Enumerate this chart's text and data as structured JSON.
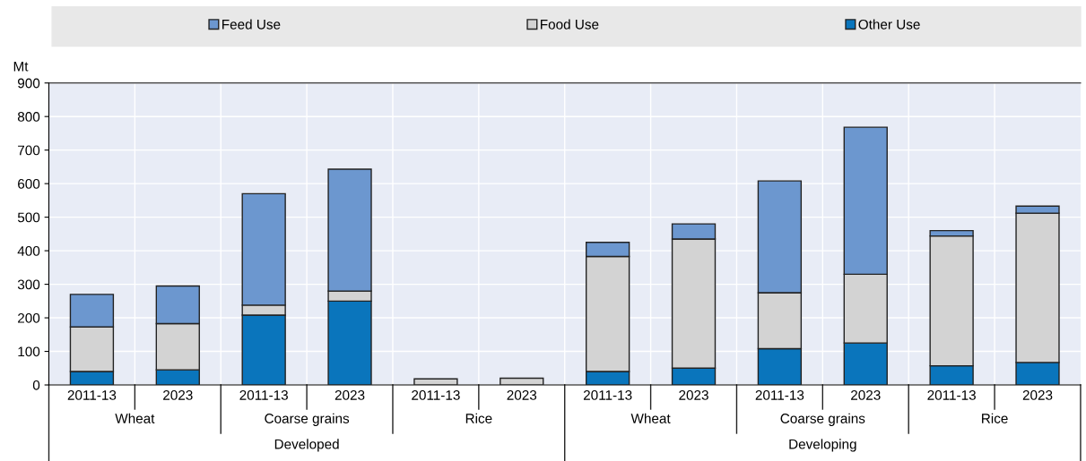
{
  "chart_data": {
    "type": "bar",
    "stacked": true,
    "ylabel": "Mt",
    "categories": [
      "2011-13",
      "2023",
      "2011-13",
      "2023",
      "2011-13",
      "2023",
      "2011-13",
      "2023",
      "2011-13",
      "2023",
      "2011-13",
      "2023"
    ],
    "series": [
      {
        "name": "Other Use",
        "color": "#0a75bc",
        "values": [
          40,
          45,
          208,
          250,
          null,
          null,
          40,
          50,
          108,
          125,
          57,
          67
        ]
      },
      {
        "name": "Food Use",
        "color": "#d3d3d3",
        "values": [
          133,
          138,
          30,
          30,
          18,
          20,
          343,
          385,
          167,
          205,
          387,
          445
        ]
      },
      {
        "name": "Feed Use",
        "color": "#6c97cf",
        "values": [
          97,
          112,
          332,
          363,
          null,
          null,
          42,
          45,
          333,
          438,
          16,
          21
        ]
      }
    ],
    "ylim": [
      0,
      900
    ],
    "yticks": [
      0,
      100,
      200,
      300,
      400,
      500,
      600,
      700,
      800,
      900
    ],
    "annotations": [
      "Wheat",
      "Coarse grains",
      "Rice",
      "Wheat",
      "Coarse grains",
      "Rice",
      "Developed",
      "Developing"
    ],
    "grid": true,
    "legend": "top"
  }
}
